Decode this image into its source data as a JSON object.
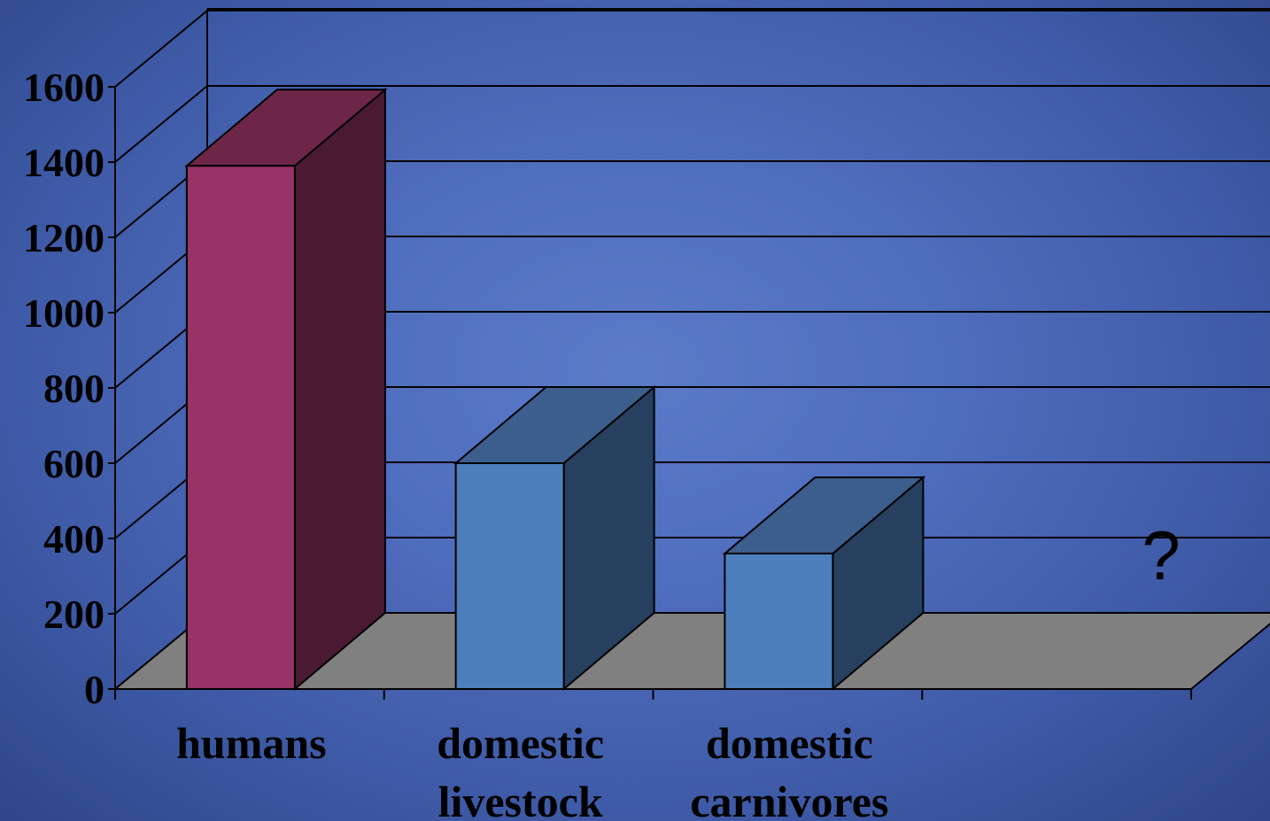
{
  "chart_data": {
    "type": "bar",
    "three_d": true,
    "title": "",
    "xlabel": "",
    "ylabel": "",
    "categories": [
      [
        "humans"
      ],
      [
        "domestic",
        "livestock"
      ],
      [
        "domestic",
        "carnivores"
      ],
      [
        ""
      ]
    ],
    "values": [
      1390,
      600,
      360,
      null
    ],
    "ylim": [
      0,
      1600
    ],
    "yticks": [
      "0",
      "200",
      "400",
      "600",
      "800",
      "1000",
      "1200",
      "1400",
      "1600"
    ],
    "grid": true,
    "legend": "none",
    "annotations": [
      {
        "text": "?",
        "category_index": 3
      }
    ],
    "colors": {
      "bar_highlight_front": "#993366",
      "bar_highlight_top": "#6e2648",
      "bar_highlight_side": "#4a1a32",
      "bar_front": "#4d7fbc",
      "bar_top": "#3c5e8c",
      "bar_side": "#27405f",
      "floor": "#808080",
      "gridline": "#000000"
    },
    "highlight_index": 0
  }
}
